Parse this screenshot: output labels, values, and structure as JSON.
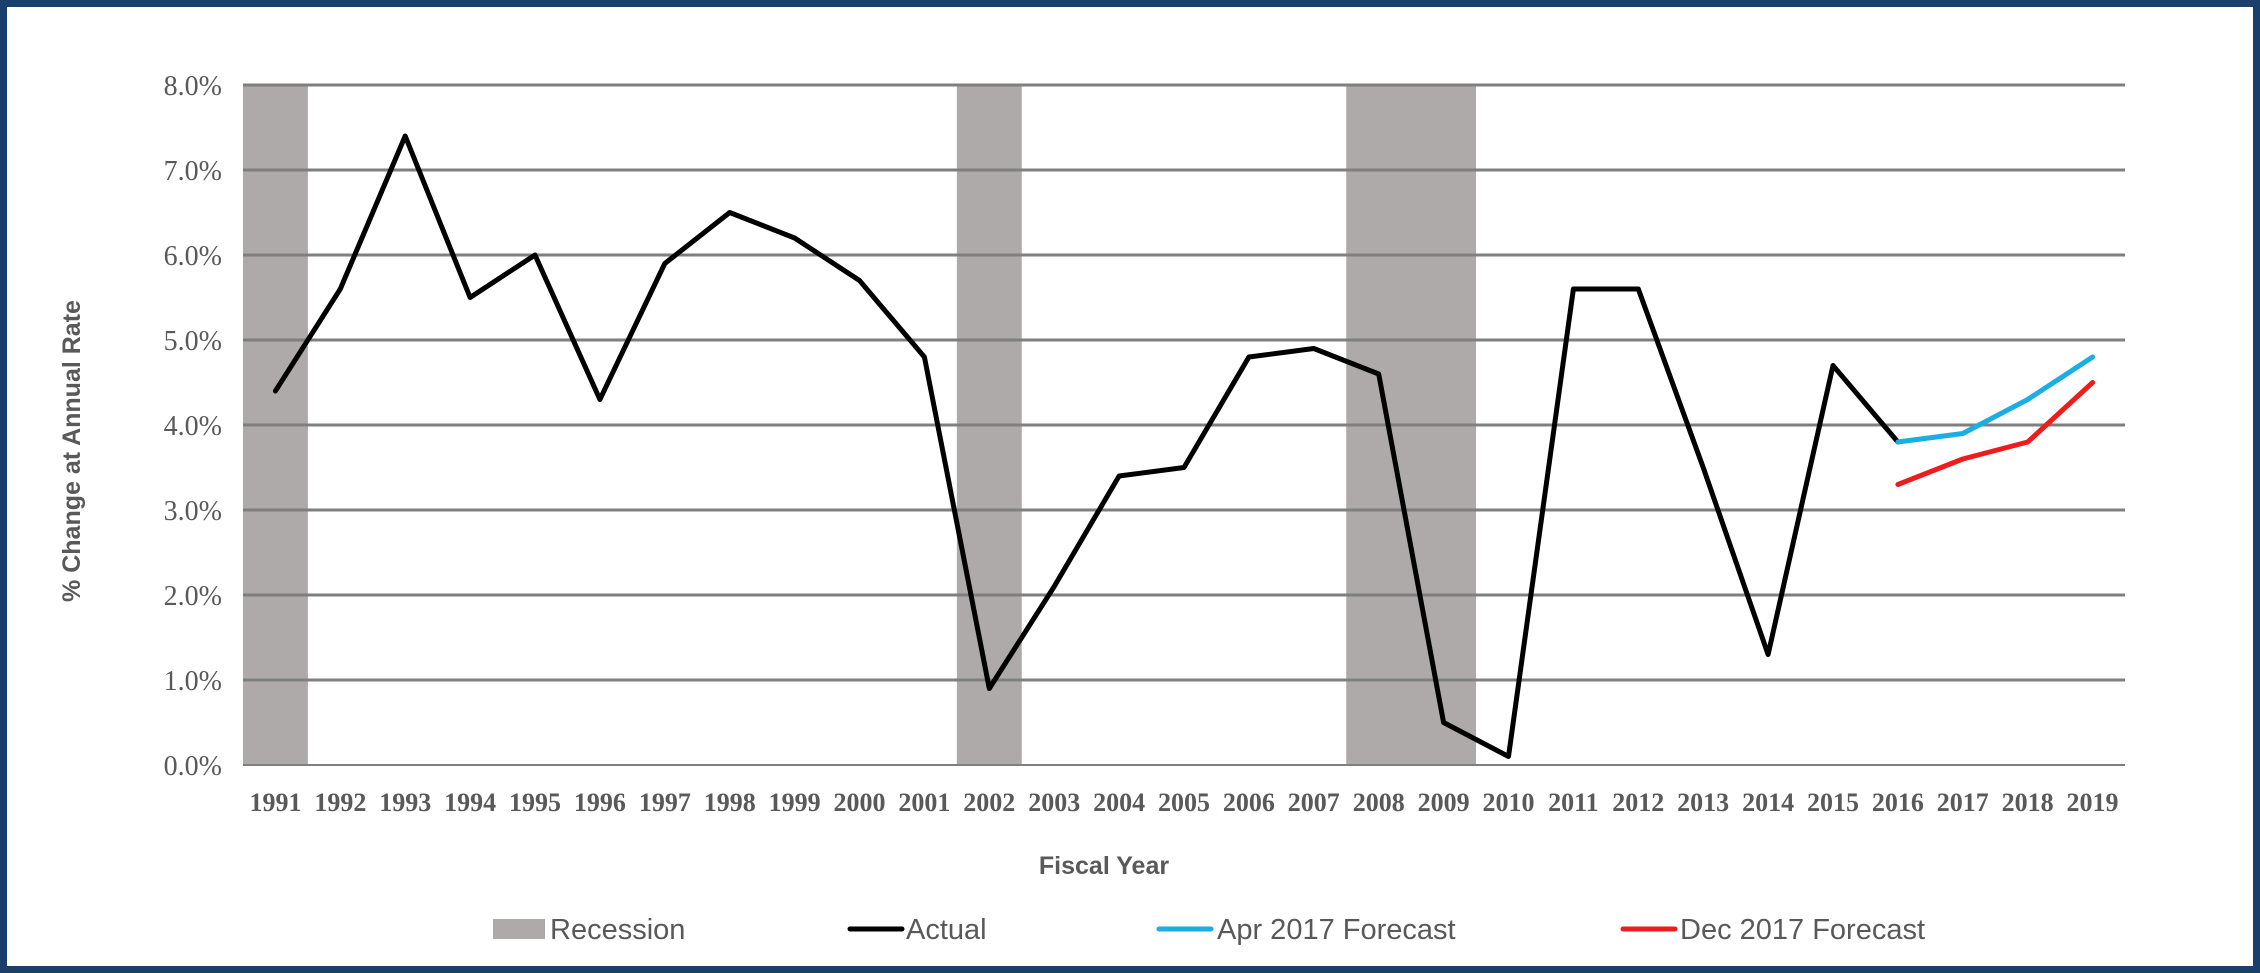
{
  "chart_data": {
    "type": "line",
    "xlabel": "Fiscal Year",
    "ylabel": "% Change at Annual Rate",
    "ylim": [
      0,
      8
    ],
    "y_ticks": [
      "0.0%",
      "1.0%",
      "2.0%",
      "3.0%",
      "4.0%",
      "5.0%",
      "6.0%",
      "7.0%",
      "8.0%"
    ],
    "categories": [
      "1991",
      "1992",
      "1993",
      "1994",
      "1995",
      "1996",
      "1997",
      "1998",
      "1999",
      "2000",
      "2001",
      "2002",
      "2003",
      "2004",
      "2005",
      "2006",
      "2007",
      "2008",
      "2009",
      "2010",
      "2011",
      "2012",
      "2013",
      "2014",
      "2015",
      "2016",
      "2017",
      "2018",
      "2019"
    ],
    "recession_periods": [
      [
        "1991",
        "1991"
      ],
      [
        "2002",
        "2002"
      ],
      [
        "2008",
        "2009"
      ]
    ],
    "series": [
      {
        "name": "Actual",
        "color": "#000000",
        "x": [
          "1991",
          "1992",
          "1993",
          "1994",
          "1995",
          "1996",
          "1997",
          "1998",
          "1999",
          "2000",
          "2001",
          "2002",
          "2003",
          "2004",
          "2005",
          "2006",
          "2007",
          "2008",
          "2009",
          "2010",
          "2011",
          "2012",
          "2013",
          "2014",
          "2015",
          "2016"
        ],
        "values": [
          4.4,
          5.6,
          7.4,
          5.5,
          6.0,
          4.3,
          5.9,
          6.5,
          6.2,
          5.7,
          4.8,
          0.9,
          2.1,
          3.4,
          3.5,
          4.8,
          4.9,
          4.6,
          0.5,
          0.1,
          5.6,
          5.6,
          3.5,
          1.3,
          4.7,
          3.8
        ]
      },
      {
        "name": "Apr 2017 Forecast",
        "color": "#1aaee5",
        "x": [
          "2016",
          "2017",
          "2018",
          "2019"
        ],
        "values": [
          3.8,
          3.9,
          4.3,
          4.8
        ]
      },
      {
        "name": "Dec 2017 Forecast",
        "color": "#ee1c1c",
        "x": [
          "2016",
          "2017",
          "2018",
          "2019"
        ],
        "values": [
          3.3,
          3.6,
          3.8,
          4.5
        ]
      }
    ],
    "legend": {
      "position": "bottom",
      "items": [
        {
          "label": "Recession",
          "color": "#aeaaaa",
          "kind": "box"
        },
        {
          "label": "Actual",
          "color": "#000000",
          "kind": "line"
        },
        {
          "label": "Apr 2017 Forecast",
          "color": "#1aaee5",
          "kind": "line"
        },
        {
          "label": "Dec 2017 Forecast",
          "color": "#ee1c1c",
          "kind": "line"
        }
      ]
    },
    "recession_color": "#aeaaaa",
    "grid": true
  }
}
